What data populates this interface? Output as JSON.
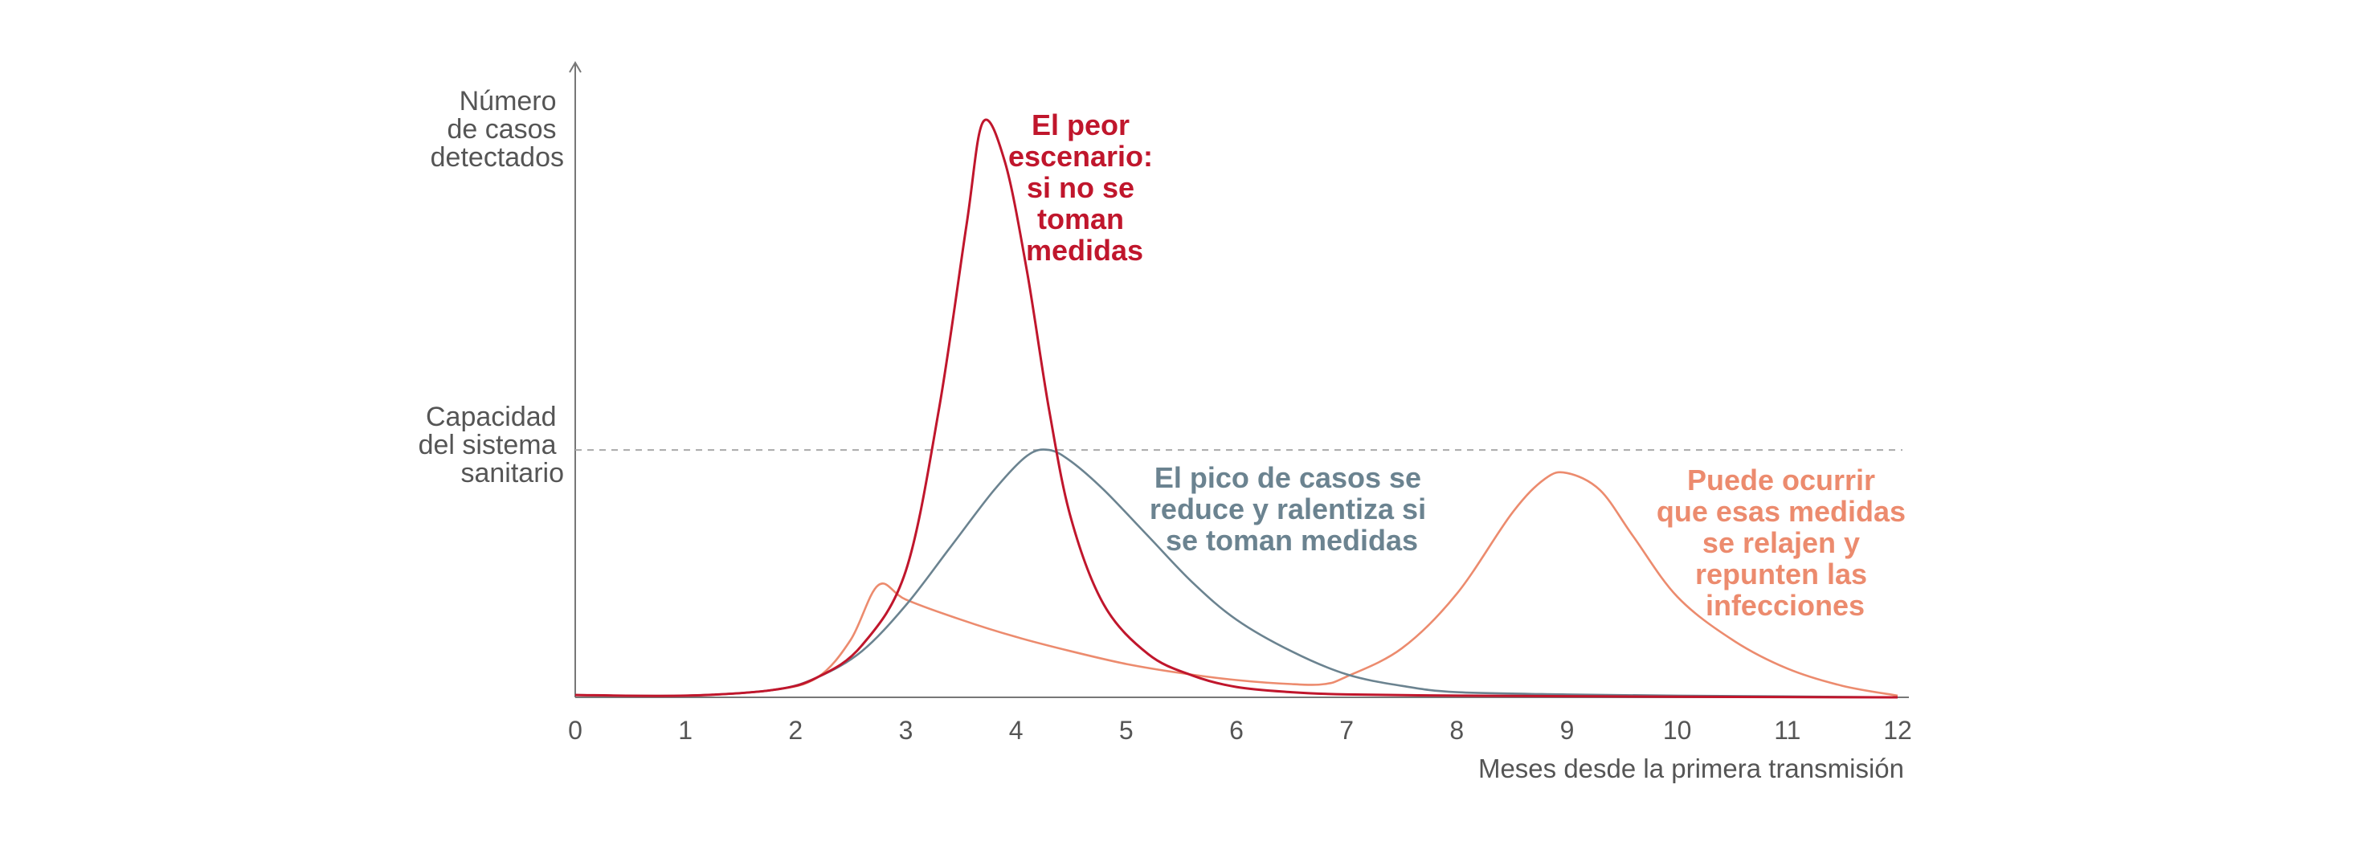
{
  "chart_data": {
    "type": "line",
    "xlabel": "Meses desde la primera transmisión",
    "ylabel_lines": [
      "Número",
      "de casos",
      "detectados"
    ],
    "capacity_label_lines": [
      "Capacidad",
      "del sistema",
      "sanitario"
    ],
    "xlim": [
      0,
      12
    ],
    "ylim": [
      0,
      100
    ],
    "x_ticks": [
      "0",
      "1",
      "2",
      "3",
      "4",
      "5",
      "6",
      "7",
      "8",
      "9",
      "10",
      "11",
      "12"
    ],
    "capacity_level": 43,
    "grid": false,
    "colors": {
      "worst": "#c0162c",
      "mitigated": "#6b8390",
      "rebound": "#ec8b6e",
      "axis": "#777777",
      "capacity_line": "#aaaaaa"
    },
    "series": [
      {
        "key": "worst",
        "x": [
          0,
          1,
          1.8,
          2.2,
          2.6,
          3.0,
          3.3,
          3.55,
          3.7,
          3.9,
          4.1,
          4.3,
          4.5,
          4.8,
          5.2,
          5.6,
          6.0,
          6.5,
          7.0,
          8.0,
          9.0,
          10.0,
          12.0
        ],
        "y": [
          0.4,
          0.3,
          1.3,
          3.5,
          9,
          22,
          50,
          82,
          100,
          93,
          74,
          50,
          31,
          16,
          7.5,
          3.8,
          1.8,
          0.9,
          0.5,
          0.3,
          0.2,
          0.1,
          0
        ]
      },
      {
        "key": "mitigated",
        "x": [
          0,
          1,
          1.8,
          2.2,
          2.6,
          3.0,
          3.4,
          3.8,
          4.1,
          4.3,
          4.5,
          4.8,
          5.2,
          5.6,
          6.0,
          6.5,
          7.0,
          7.5,
          8.0,
          9.0,
          10.0,
          12.0
        ],
        "y": [
          0.4,
          0.3,
          1.3,
          3.5,
          8,
          16,
          26,
          36,
          42,
          43,
          41,
          36,
          28,
          20,
          13.5,
          8,
          4,
          2,
          0.9,
          0.5,
          0.3,
          0
        ]
      },
      {
        "key": "rebound",
        "x": [
          0,
          1,
          1.8,
          2.2,
          2.5,
          2.75,
          3.0,
          3.5,
          4.0,
          4.5,
          5.0,
          5.5,
          6.0,
          6.5,
          6.8,
          7.0,
          7.5,
          8.0,
          8.5,
          8.8,
          9.0,
          9.3,
          9.6,
          10.0,
          10.5,
          11.0,
          11.5,
          12.0
        ],
        "y": [
          0.4,
          0.3,
          1.3,
          3.5,
          10,
          19.5,
          17,
          13.5,
          10.5,
          8,
          5.8,
          4.2,
          3,
          2.3,
          2.3,
          3.6,
          8.5,
          18,
          32,
          38,
          39,
          36,
          28,
          17.5,
          10,
          5,
          2,
          0.3
        ]
      }
    ],
    "annotations": {
      "worst": [
        "El peor",
        "escenario:",
        "si no se",
        "toman",
        "medidas"
      ],
      "mitigated": [
        "El pico de casos se",
        "reduce y ralentiza si",
        "se toman medidas"
      ],
      "rebound": [
        "Puede ocurrir",
        "que esas medidas",
        "se relajen y",
        "repunten las",
        "infecciones"
      ]
    }
  }
}
